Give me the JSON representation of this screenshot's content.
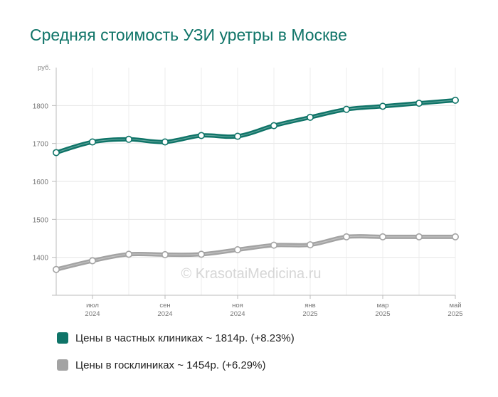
{
  "title": "Средняя стоимость УЗИ уретры в Москве",
  "watermark": "© KrasotaiMedicina.ru",
  "colors": {
    "private": "#0f7468",
    "public": "#a3a3a3",
    "title": "#0f7468"
  },
  "chart_data": {
    "type": "line",
    "title": "Средняя стоимость УЗИ уретры в Москве",
    "ylabel": "руб.",
    "xlabel": "",
    "ylim": [
      1300,
      1900
    ],
    "yticks": [
      1400,
      1500,
      1600,
      1700,
      1800
    ],
    "grid": true,
    "legend_position": "bottom-left",
    "x_tick_labels": [
      {
        "month": "июл",
        "year": "2024"
      },
      {
        "month": "сен",
        "year": "2024"
      },
      {
        "month": "ноя",
        "year": "2024"
      },
      {
        "month": "янв",
        "year": "2025"
      },
      {
        "month": "мар",
        "year": "2025"
      },
      {
        "month": "май",
        "year": "2025"
      }
    ],
    "x": [
      "2024-06",
      "2024-07",
      "2024-08",
      "2024-09",
      "2024-10",
      "2024-11",
      "2024-12",
      "2025-01",
      "2025-02",
      "2025-03",
      "2025-04",
      "2025-05"
    ],
    "series": [
      {
        "name": "Цены в частных клиниках ~ 1814р. (+8.23%)",
        "color": "#0f7468",
        "values": [
          1676,
          1704,
          1711,
          1704,
          1721,
          1719,
          1747,
          1769,
          1790,
          1798,
          1806,
          1814
        ]
      },
      {
        "name": "Цены в госклиниках ~ 1454р. (+6.29%)",
        "color": "#a3a3a3",
        "values": [
          1368,
          1391,
          1408,
          1407,
          1408,
          1420,
          1432,
          1433,
          1454,
          1454,
          1454,
          1454
        ]
      }
    ]
  }
}
